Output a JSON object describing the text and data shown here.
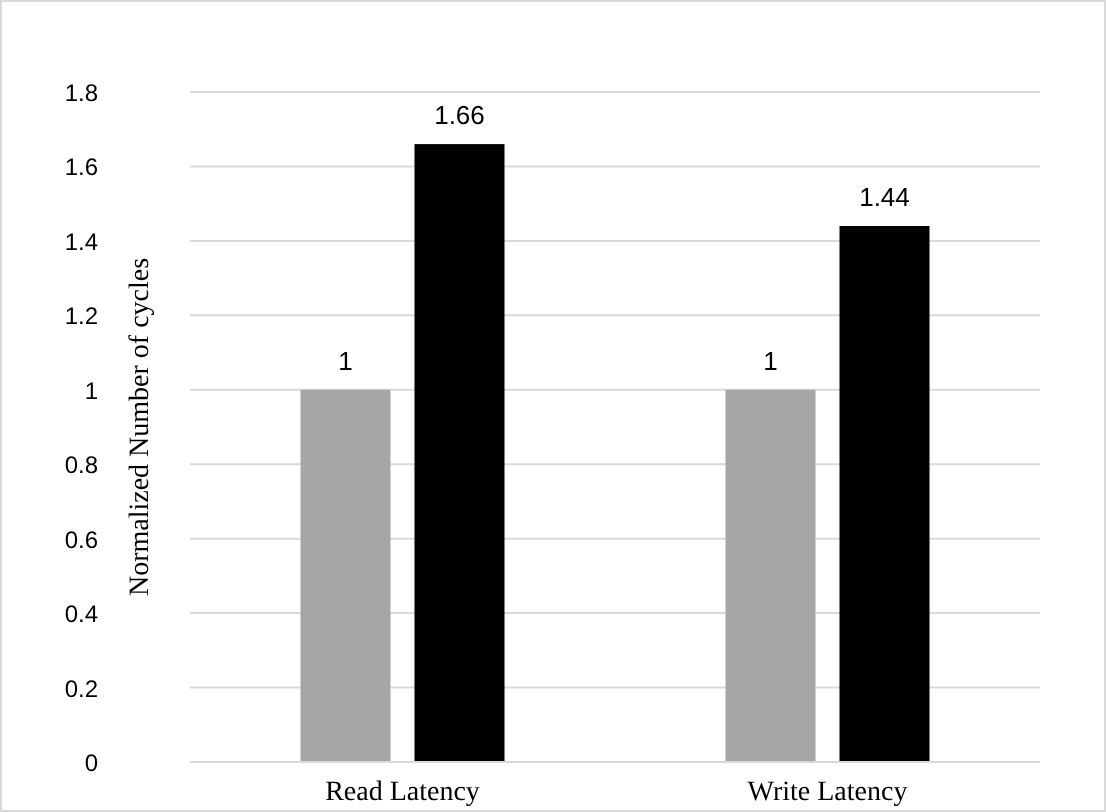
{
  "chart_data": {
    "type": "bar",
    "ylabel": "Normalized Number of cycles",
    "categories": [
      "Read Latency",
      "Write Latency"
    ],
    "series": [
      {
        "color": "#a6a6a6",
        "values": [
          1,
          1
        ]
      },
      {
        "color": "#000000",
        "values": [
          1.66,
          1.44
        ]
      }
    ],
    "ylim": [
      0,
      1.8
    ],
    "yticks": [
      0,
      0.2,
      0.4,
      0.6,
      0.8,
      1,
      1.2,
      1.4,
      1.6,
      1.8
    ],
    "grid": "y",
    "data_labels": true
  }
}
